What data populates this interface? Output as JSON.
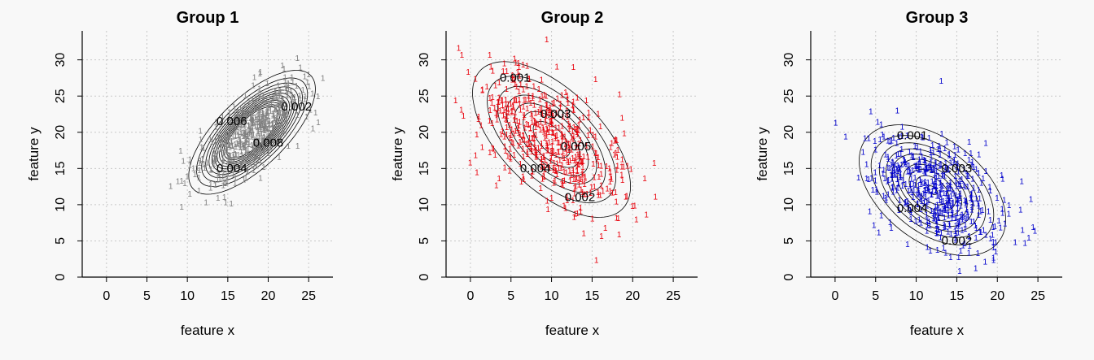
{
  "chart_data": [
    {
      "type": "scatter",
      "title": "Group 1",
      "xlabel": "feature x",
      "ylabel": "feature y",
      "xlim": [
        -3,
        28
      ],
      "ylim": [
        0,
        34
      ],
      "xticks": [
        0,
        5,
        10,
        15,
        20,
        25
      ],
      "yticks": [
        0,
        5,
        10,
        15,
        20,
        25,
        30
      ],
      "grid": true,
      "point_symbol": "1",
      "point_color": "#808080",
      "mean": [
        18,
        20
      ],
      "sd": [
        3.2,
        3.5
      ],
      "correlation": 0.7,
      "contour_labels": [
        {
          "text": "0.002",
          "x": 23.5,
          "y": 23.5
        },
        {
          "text": "0.006",
          "x": 15.5,
          "y": 21.5
        },
        {
          "text": "0.008",
          "x": 20,
          "y": 18.5
        },
        {
          "text": "0.004",
          "x": 15.5,
          "y": 15
        }
      ]
    },
    {
      "type": "scatter",
      "title": "Group 2",
      "xlabel": "feature x",
      "ylabel": "feature y",
      "xlim": [
        -3,
        28
      ],
      "ylim": [
        0,
        34
      ],
      "xticks": [
        0,
        5,
        10,
        15,
        20,
        25
      ],
      "yticks": [
        0,
        5,
        10,
        15,
        20,
        25,
        30
      ],
      "grid": true,
      "point_symbol": "1",
      "point_color": "#e8000b",
      "mean": [
        10,
        19
      ],
      "sd": [
        4.8,
        5.3
      ],
      "correlation": -0.6,
      "contour_labels": [
        {
          "text": "0.001",
          "x": 5.5,
          "y": 27.5
        },
        {
          "text": "0.003",
          "x": 10.5,
          "y": 22.5
        },
        {
          "text": "0.005",
          "x": 13,
          "y": 18
        },
        {
          "text": "0.004",
          "x": 8,
          "y": 15
        },
        {
          "text": "0.002",
          "x": 13.5,
          "y": 11
        }
      ]
    },
    {
      "type": "scatter",
      "title": "Group 3",
      "xlabel": "feature x",
      "ylabel": "feature y",
      "xlim": [
        -3,
        28
      ],
      "ylim": [
        0,
        34
      ],
      "xticks": [
        0,
        5,
        10,
        15,
        20,
        25
      ],
      "yticks": [
        0,
        5,
        10,
        15,
        20,
        25,
        30
      ],
      "grid": true,
      "point_symbol": "1",
      "point_color": "#0000cc",
      "mean": [
        12,
        12
      ],
      "sd": [
        4.2,
        4.2
      ],
      "correlation": -0.45,
      "contour_labels": [
        {
          "text": "0.001",
          "x": 9.5,
          "y": 19.5
        },
        {
          "text": "0.003",
          "x": 15,
          "y": 15
        },
        {
          "text": "0.004",
          "x": 9.5,
          "y": 9.5
        },
        {
          "text": "0.002",
          "x": 15,
          "y": 5
        }
      ]
    }
  ]
}
